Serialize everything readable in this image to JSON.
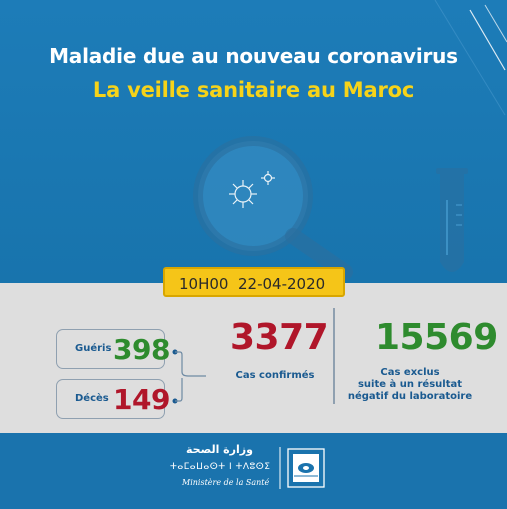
{
  "header": {
    "title": "Maladie due au nouveau coronavirus",
    "subtitle": "La veille sanitaire au Maroc",
    "title_color": "#ffffff",
    "subtitle_color": "#f6d319"
  },
  "report": {
    "time": "10H00",
    "date": "22-04-2020"
  },
  "stats": {
    "recovered": {
      "label": "Guéris",
      "value": "398",
      "color": "#2e8b2e"
    },
    "deaths": {
      "label": "Décès",
      "value": "149",
      "color": "#b0162a"
    },
    "confirmed": {
      "value": "3377",
      "label": "Cas confirmés",
      "color": "#b0162a"
    },
    "excluded": {
      "value": "15569",
      "label_line1": "Cas exclus",
      "label_line2": "suite à un résultat",
      "label_line3": "négatif du laboratoire",
      "color": "#2e8b2e"
    }
  },
  "footer": {
    "arabic_name": "وزارة الصحة",
    "tifinagh_name": "ⵜⴰⵎⴰⵡⴰⵙⵜ ⵏ ⵜⴷⵓⵙⵉ",
    "ministry_name": "Ministère de la Santé",
    "logo": "ministry-of-health-logo"
  },
  "illustration": {
    "icons": [
      "magnifier-icon",
      "virus-icon",
      "test-tube-icon"
    ]
  }
}
